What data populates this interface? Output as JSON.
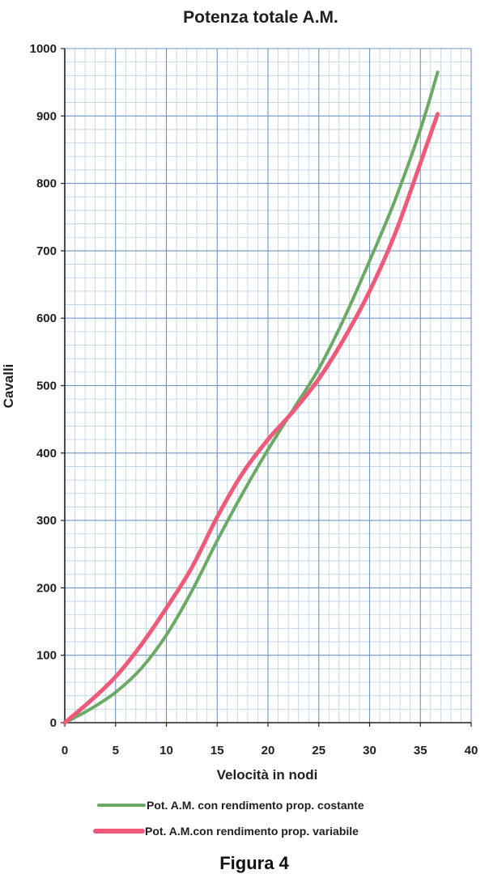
{
  "chart_data": {
    "type": "line",
    "title": "Potenza totale  A.M.",
    "xlabel": "Velocità in nodi",
    "ylabel": "Cavalli",
    "xlim": [
      0,
      40
    ],
    "ylim": [
      0,
      1000
    ],
    "xticks": [
      "0",
      "5",
      "10",
      "15",
      "20",
      "25",
      "30",
      "35",
      "40"
    ],
    "yticks": [
      "0",
      "100",
      "200",
      "300",
      "400",
      "500",
      "600",
      "700",
      "800",
      "900",
      "1000"
    ],
    "grid": true,
    "legend_position": "bottom",
    "series": [
      {
        "name": "Pot. A.M. con rendimento prop. costante",
        "color": "#6aaa64",
        "x": [
          0,
          2.5,
          5,
          7.5,
          10,
          12.5,
          15,
          17.5,
          20,
          22.5,
          25,
          27.5,
          30,
          32.5,
          35,
          36.7
        ],
        "y": [
          0,
          20,
          45,
          80,
          130,
          195,
          270,
          340,
          405,
          465,
          525,
          600,
          685,
          775,
          880,
          965
        ]
      },
      {
        "name": "Pot. A.M.con rendimento prop. variabile",
        "color": "#ef5a7a",
        "x": [
          0,
          2.5,
          5,
          7.5,
          10,
          12.5,
          15,
          17.5,
          20,
          22.5,
          25,
          27.5,
          30,
          32.5,
          35,
          36.7
        ],
        "y": [
          0,
          32,
          68,
          115,
          170,
          230,
          305,
          370,
          420,
          462,
          510,
          570,
          640,
          725,
          830,
          903
        ]
      }
    ]
  },
  "caption": "Figura  4"
}
